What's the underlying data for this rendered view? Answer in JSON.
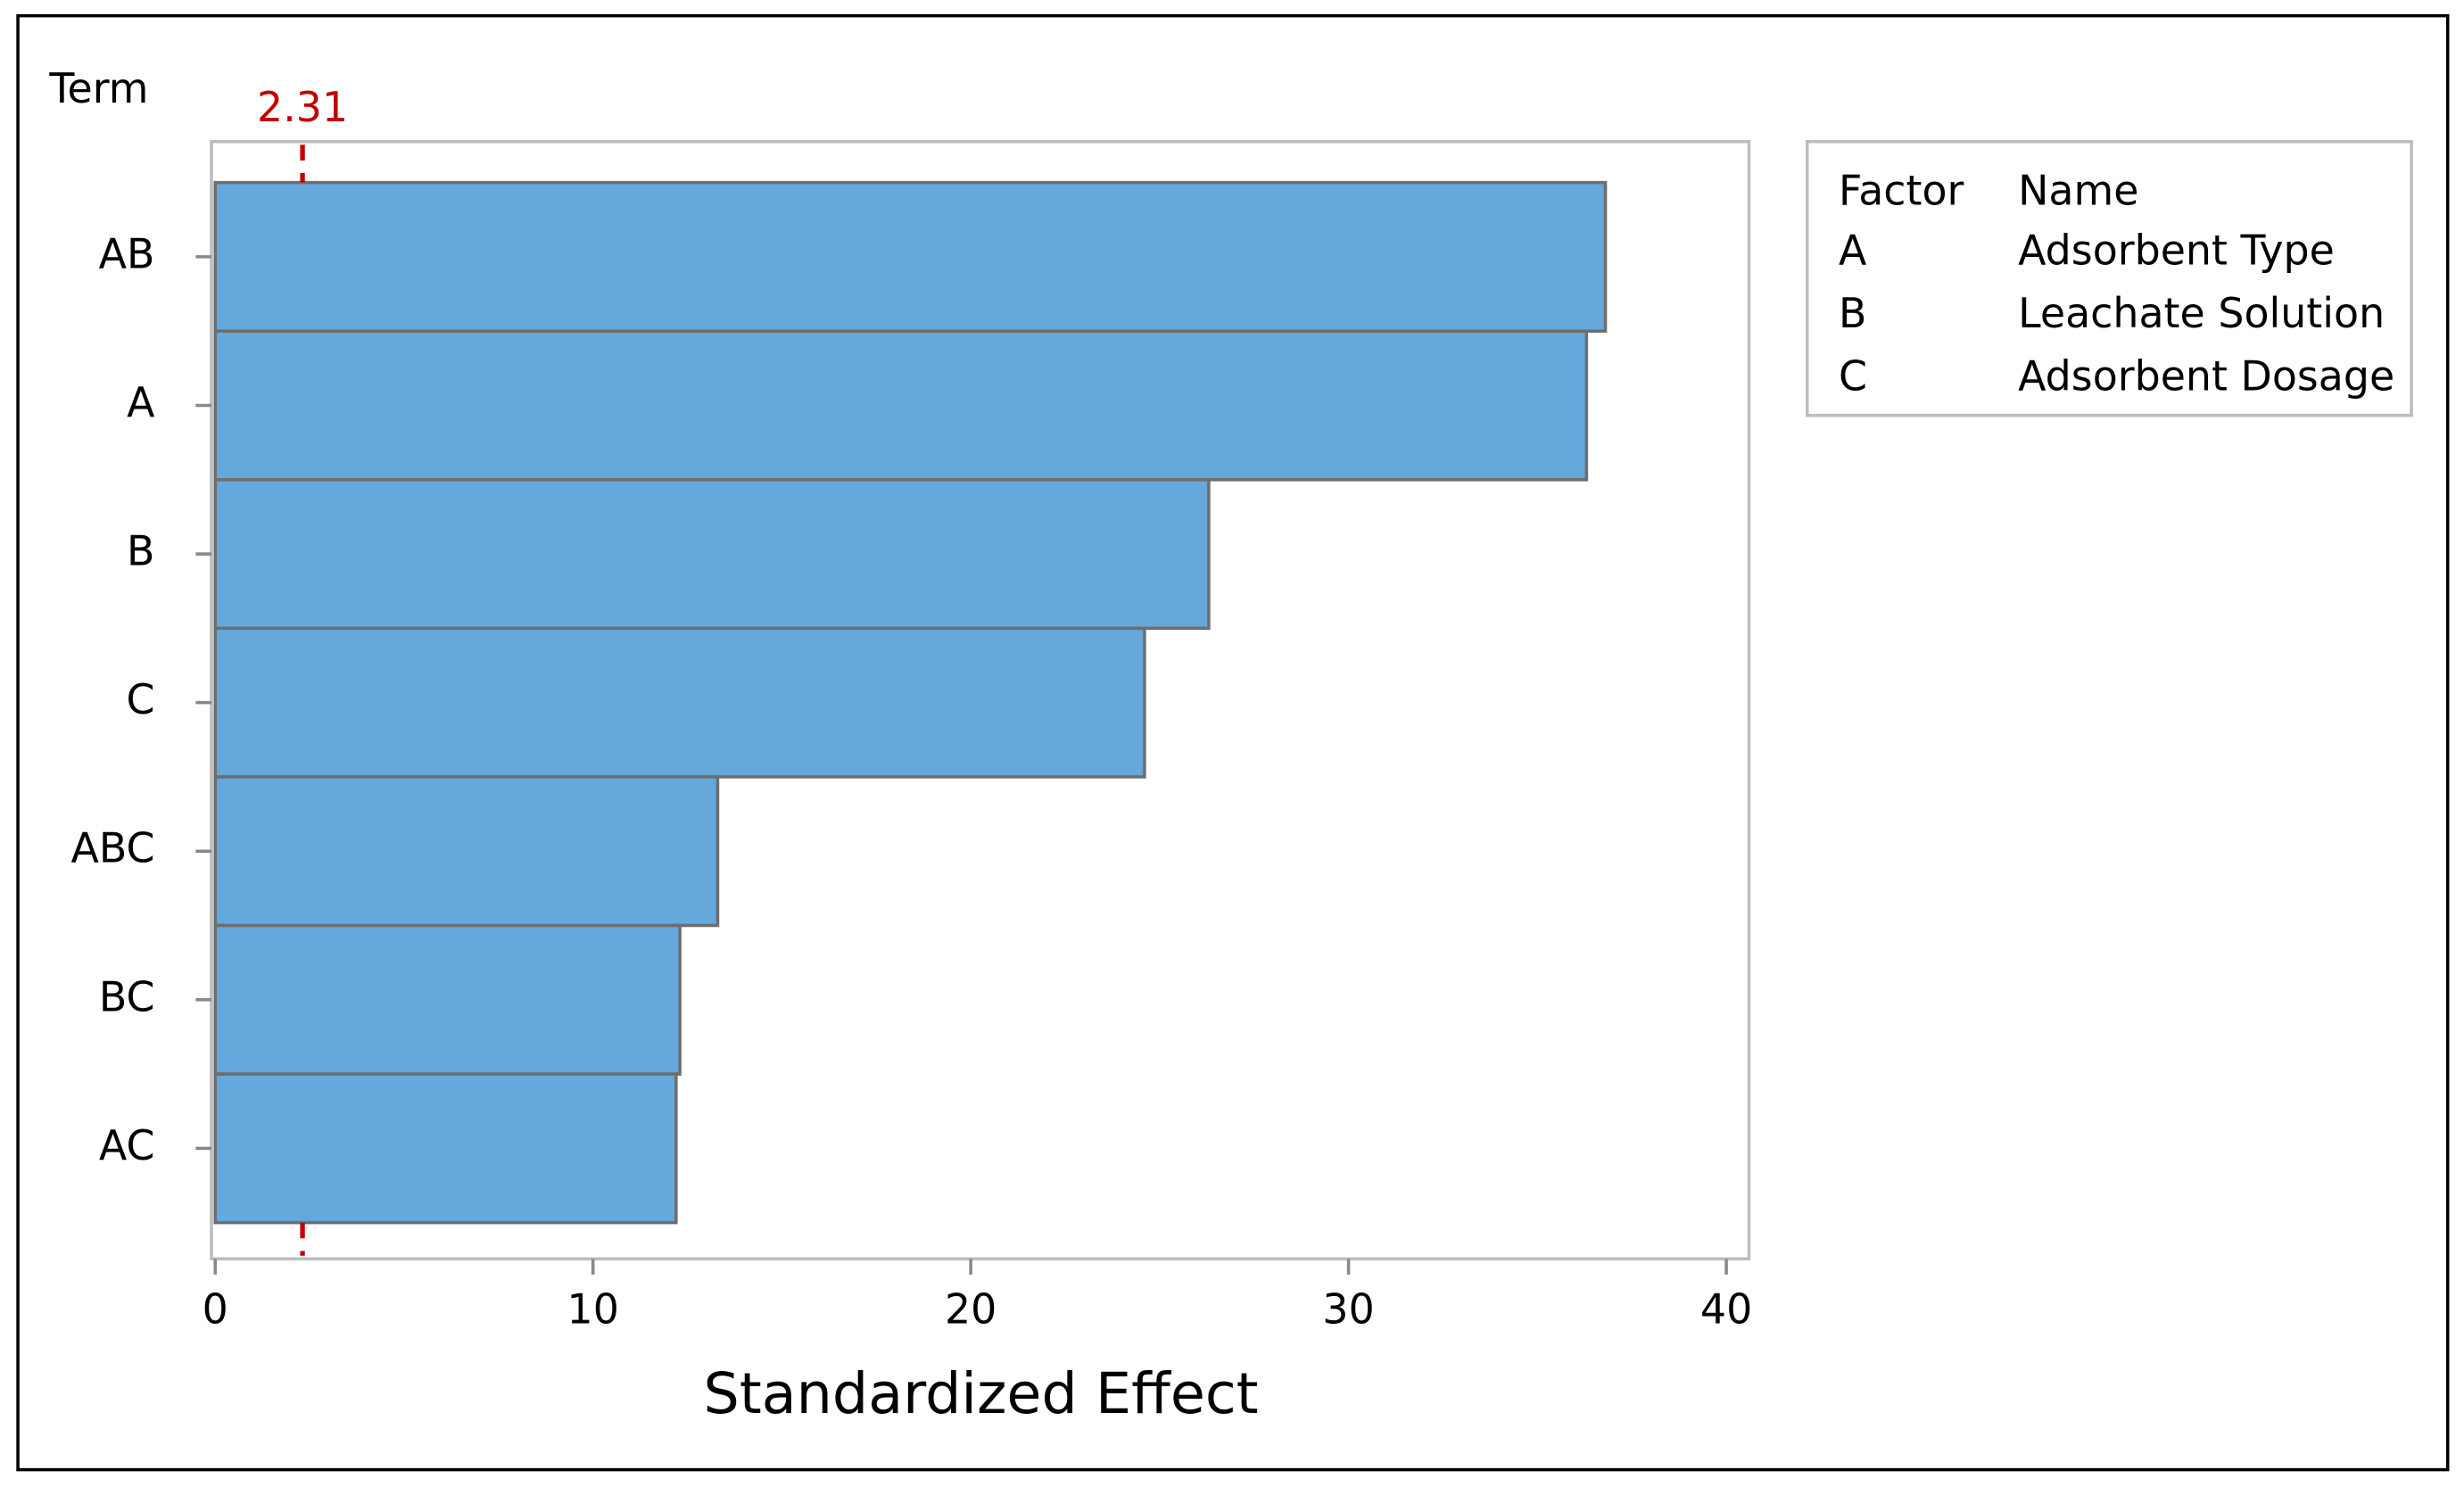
{
  "chart_data": {
    "type": "bar",
    "orientation": "horizontal",
    "y_axis_title": "Term",
    "x_axis_title": "Standardized Effect",
    "categories": [
      "AB",
      "A",
      "B",
      "C",
      "ABC",
      "BC",
      "AC"
    ],
    "values": [
      36.8,
      36.3,
      26.3,
      24.6,
      13.3,
      12.3,
      12.2
    ],
    "color": "#65a8dc",
    "reference_line": 2.31,
    "reference_color": "#c00000",
    "xlim": [
      -0.1,
      40.6
    ],
    "xticks": [
      0,
      10,
      20,
      30,
      40
    ],
    "legend_table": {
      "header": [
        "Factor",
        "Name"
      ],
      "rows": [
        [
          "A",
          "Adsorbent Type"
        ],
        [
          "B",
          "Leachate Solution"
        ],
        [
          "C",
          "Adsorbent Dosage"
        ]
      ]
    }
  }
}
